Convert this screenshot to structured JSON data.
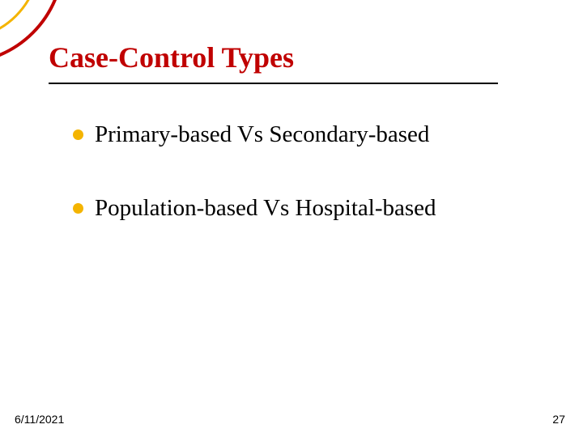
{
  "slide": {
    "title": "Case-Control Types",
    "title_fontsize": 36,
    "title_color": "#c00000",
    "underline_color": "#000000",
    "bullets": [
      {
        "text": "Primary-based Vs Secondary-based"
      },
      {
        "text": "Population-based Vs Hospital-based"
      }
    ],
    "bullet_fontsize": 29,
    "bullet_text_color": "#000000",
    "bullet_dot_color": "#f4b400",
    "corner_arcs": {
      "outer_color": "#c00000",
      "inner_color": "#f4b400"
    },
    "background_color": "#ffffff"
  },
  "footer": {
    "date": "6/11/2021",
    "page": "27",
    "fontsize": 14,
    "color": "#000000"
  }
}
